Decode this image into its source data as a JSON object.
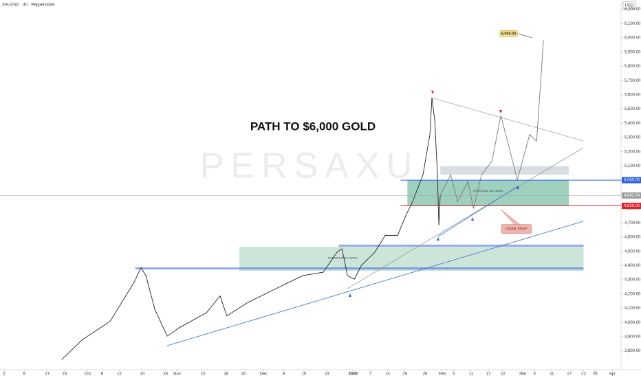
{
  "chart_data": {
    "type": "line",
    "title": "XAUUSD · 4h · Pepperstone",
    "currency": "USD",
    "headline": "PATH TO $6,000 GOLD",
    "watermark": "PERSAXU",
    "color": "#222222",
    "x": [
      21.0,
      28.2,
      37.8,
      46.1,
      48.5,
      50.2,
      53.3,
      57.6,
      61.6,
      71.2,
      75.9,
      78.3,
      85.5,
      95.0,
      104.6,
      111.7,
      116.5,
      118.2,
      120.1,
      122.5,
      124.9,
      129.6,
      133.2,
      137.5,
      140.4,
      142.7,
      146.3,
      148.7,
      149.4,
      150.4,
      151.3,
      151.8,
      152.3
    ],
    "values": [
      3739,
      3880,
      4008,
      4282,
      4386,
      4329,
      4093,
      3904,
      3961,
      4069,
      4187,
      4046,
      4140,
      4235,
      4329,
      4353,
      4494,
      4518,
      4329,
      4305,
      4400,
      4494,
      4612,
      4612,
      4754,
      4849,
      5038,
      5321,
      5581,
      5415,
      5038,
      4683,
      4896
    ],
    "projection": {
      "color": "#777777",
      "x": [
        152.3,
        155.9,
        158.3,
        161.9,
        163.8,
        166.6,
        170.2,
        173.3,
        177.4,
        179.0,
        183.3,
        185.7,
        188.1
      ],
      "values": [
        4896,
        5038,
        4849,
        4991,
        4801,
        5038,
        5132,
        5455,
        5132,
        5000,
        5321,
        5274,
        5982
      ]
    },
    "levels": [
      {
        "value": 5000,
        "label": "5,000.00",
        "color": "#2f5fe0"
      },
      {
        "value": 4892.54,
        "label": "4,892.54",
        "color": "#9e9e9e"
      },
      {
        "value": 4820,
        "label": "4,820.00",
        "color": "#e0202a"
      }
    ],
    "zones": [
      {
        "xlim": [
          140.9,
          196.9
        ],
        "ylim": [
          4820,
          5000
        ],
        "color": "rgba(40,150,110,0.45)",
        "label": "POTENTIAL BUY AREA"
      },
      {
        "xlim": [
          152.3,
          196.9
        ],
        "ylim": [
          5038,
          5099
        ],
        "color": "rgba(150,160,175,0.35)"
      },
      {
        "xlim": [
          82.6,
          202
        ],
        "ylim": [
          4362,
          4532
        ],
        "color": "rgba(90,170,130,0.3)",
        "label": "EXTENDED BUY AREA"
      }
    ],
    "supports": [
      {
        "xlim": [
          46.5,
          202
        ],
        "value": 4380
      },
      {
        "xlim": [
          117.1,
          202
        ],
        "value": 4540
      }
    ],
    "target": {
      "x": 176,
      "y": 6030,
      "label": "6,000.00"
    },
    "trap": {
      "x": 178,
      "y": 4660,
      "label": "USAR TRAP"
    },
    "xlim": [
      -0.4,
      215
    ],
    "ylim": [
      3668,
      6266
    ],
    "xticks": [
      {
        "value": 1,
        "label": "2"
      },
      {
        "value": 8,
        "label": "9"
      },
      {
        "value": 16,
        "label": "17"
      },
      {
        "value": 22,
        "label": "23"
      },
      {
        "value": 30,
        "label": "Oct"
      },
      {
        "value": 35,
        "label": "6"
      },
      {
        "value": 41,
        "label": "12"
      },
      {
        "value": 49,
        "label": "20"
      },
      {
        "value": 57,
        "label": "28"
      },
      {
        "value": 61,
        "label": "Nov"
      },
      {
        "value": 70,
        "label": "10"
      },
      {
        "value": 78,
        "label": "18"
      },
      {
        "value": 84,
        "label": "24"
      },
      {
        "value": 91,
        "label": "Dec"
      },
      {
        "value": 98,
        "label": "8"
      },
      {
        "value": 105,
        "label": "15"
      },
      {
        "value": 113,
        "label": "23"
      },
      {
        "value": 122,
        "label": "2026"
      },
      {
        "value": 128,
        "label": "7"
      },
      {
        "value": 134,
        "label": "13"
      },
      {
        "value": 140,
        "label": "19"
      },
      {
        "value": 147,
        "label": "26"
      },
      {
        "value": 153,
        "label": "Feb"
      },
      {
        "value": 157,
        "label": "5"
      },
      {
        "value": 163,
        "label": "11"
      },
      {
        "value": 169,
        "label": "17"
      },
      {
        "value": 174,
        "label": "22"
      },
      {
        "value": 181,
        "label": "Mar"
      },
      {
        "value": 185,
        "label": "5"
      },
      {
        "value": 191,
        "label": "11"
      },
      {
        "value": 197,
        "label": "17"
      },
      {
        "value": 202,
        "label": "22"
      },
      {
        "value": 206,
        "label": "26"
      },
      {
        "value": 212,
        "label": "Apr"
      }
    ],
    "yticks": [
      {
        "value": 3800,
        "label": "3,800.00"
      },
      {
        "value": 3900,
        "label": "3,900.00"
      },
      {
        "value": 4000,
        "label": "4,000.00"
      },
      {
        "value": 4100,
        "label": "4,100.00"
      },
      {
        "value": 4200,
        "label": "4,200.00"
      },
      {
        "value": 4300,
        "label": "4,300.00"
      },
      {
        "value": 4400,
        "label": "4,400.00"
      },
      {
        "value": 4500,
        "label": "4,500.00"
      },
      {
        "value": 4600,
        "label": "4,600.00"
      },
      {
        "value": 4700,
        "label": "4,700.00"
      },
      {
        "value": 4800,
        "label": "4,800.00"
      },
      {
        "value": 4900,
        "label": "4,900.00"
      },
      {
        "value": 5000,
        "label": "5,000.00"
      },
      {
        "value": 5100,
        "label": "5,100.00"
      },
      {
        "value": 5200,
        "label": "5,200.00"
      },
      {
        "value": 5300,
        "label": "5,300.00"
      },
      {
        "value": 5400,
        "label": "5,400.00"
      },
      {
        "value": 5500,
        "label": "5,500.00"
      },
      {
        "value": 5600,
        "label": "5,600.00"
      },
      {
        "value": 5700,
        "label": "5,700.00"
      },
      {
        "value": 5800,
        "label": "5,800.00"
      },
      {
        "value": 5900,
        "label": "5,900.00"
      },
      {
        "value": 6000,
        "label": "6,000.00"
      },
      {
        "value": 6100,
        "label": "6,100.00"
      },
      {
        "value": 6200,
        "label": "6,200.00"
      }
    ]
  }
}
